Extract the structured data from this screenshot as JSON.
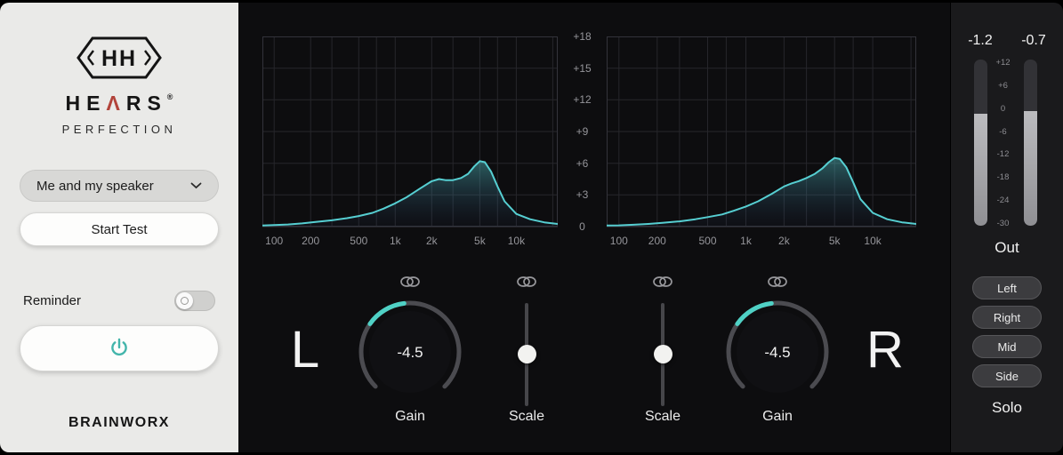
{
  "accent": {
    "teal": "#4fd1c5",
    "curve": "#56cfd2"
  },
  "sidebar": {
    "brand_prefix": "HE",
    "brand_lambda": "Λ",
    "brand_suffix": "RS",
    "registered": "®",
    "tagline": "PERFECTION",
    "profile": {
      "selected": "Me and my speaker"
    },
    "start_test_label": "Start Test",
    "reminder_label": "Reminder",
    "footer_brand": "BRAINWORX"
  },
  "graphs": {
    "db_ticks": [
      "+18",
      "+15",
      "+12",
      "+9",
      "+6",
      "+3",
      "0"
    ]
  },
  "chart_data": [
    {
      "type": "area",
      "name": "left-channel-eq-curve",
      "xscale": "log",
      "xlim": [
        80,
        22000
      ],
      "ylim": [
        0,
        18
      ],
      "grid_db": [
        0,
        3,
        6,
        9,
        12,
        15,
        18
      ],
      "grid_freqs": [
        100,
        200,
        300,
        500,
        700,
        1000,
        2000,
        3000,
        5000,
        7000,
        10000,
        20000
      ],
      "xticks": [
        {
          "f": 100,
          "label": "100"
        },
        {
          "f": 200,
          "label": "200"
        },
        {
          "f": 500,
          "label": "500"
        },
        {
          "f": 1000,
          "label": "1k"
        },
        {
          "f": 2000,
          "label": "2k"
        },
        {
          "f": 5000,
          "label": "5k"
        },
        {
          "f": 10000,
          "label": "10k"
        }
      ],
      "x": [
        80,
        100,
        130,
        170,
        220,
        300,
        400,
        500,
        650,
        800,
        1000,
        1250,
        1600,
        2000,
        2300,
        2600,
        3000,
        3500,
        4000,
        4500,
        5000,
        5500,
        6200,
        7000,
        8000,
        10000,
        13000,
        17000,
        22000
      ],
      "y": [
        0.1,
        0.15,
        0.2,
        0.3,
        0.45,
        0.6,
        0.8,
        1.0,
        1.3,
        1.7,
        2.2,
        2.8,
        3.6,
        4.3,
        4.5,
        4.4,
        4.4,
        4.6,
        5.0,
        5.7,
        6.2,
        6.1,
        5.2,
        3.8,
        2.4,
        1.2,
        0.7,
        0.4,
        0.25
      ]
    },
    {
      "type": "area",
      "name": "right-channel-eq-curve",
      "xscale": "log",
      "xlim": [
        80,
        22000
      ],
      "ylim": [
        0,
        18
      ],
      "grid_db": [
        0,
        3,
        6,
        9,
        12,
        15,
        18
      ],
      "grid_freqs": [
        100,
        200,
        300,
        500,
        700,
        1000,
        2000,
        3000,
        5000,
        7000,
        10000,
        20000
      ],
      "xticks": [
        {
          "f": 100,
          "label": "100"
        },
        {
          "f": 200,
          "label": "200"
        },
        {
          "f": 500,
          "label": "500"
        },
        {
          "f": 1000,
          "label": "1k"
        },
        {
          "f": 2000,
          "label": "2k"
        },
        {
          "f": 5000,
          "label": "5k"
        },
        {
          "f": 10000,
          "label": "10k"
        }
      ],
      "x": [
        80,
        100,
        130,
        170,
        220,
        300,
        400,
        500,
        650,
        800,
        1000,
        1250,
        1600,
        2000,
        2300,
        2600,
        3000,
        3500,
        4000,
        4500,
        5000,
        5500,
        6200,
        7000,
        8000,
        10000,
        13000,
        17000,
        22000
      ],
      "y": [
        0.1,
        0.12,
        0.18,
        0.25,
        0.35,
        0.5,
        0.7,
        0.9,
        1.15,
        1.5,
        1.9,
        2.4,
        3.1,
        3.8,
        4.1,
        4.3,
        4.6,
        5.0,
        5.5,
        6.1,
        6.5,
        6.4,
        5.6,
        4.2,
        2.6,
        1.3,
        0.7,
        0.4,
        0.25
      ]
    }
  ],
  "controls": {
    "left_label": "L",
    "right_label": "R",
    "gain_left_value": "-4.5",
    "gain_right_value": "-4.5",
    "gain_label": "Gain",
    "scale_label": "Scale"
  },
  "output": {
    "left_value": "-1.2",
    "right_value": "-0.7",
    "left_fill_pct": 67.4,
    "right_fill_pct": 69.2,
    "meter_ticks": [
      "+12",
      "+6",
      "0",
      "-6",
      "-12",
      "-18",
      "-24",
      "-30"
    ],
    "out_label": "Out",
    "solo_buttons": [
      "Left",
      "Right",
      "Mid",
      "Side"
    ],
    "solo_label": "Solo"
  }
}
